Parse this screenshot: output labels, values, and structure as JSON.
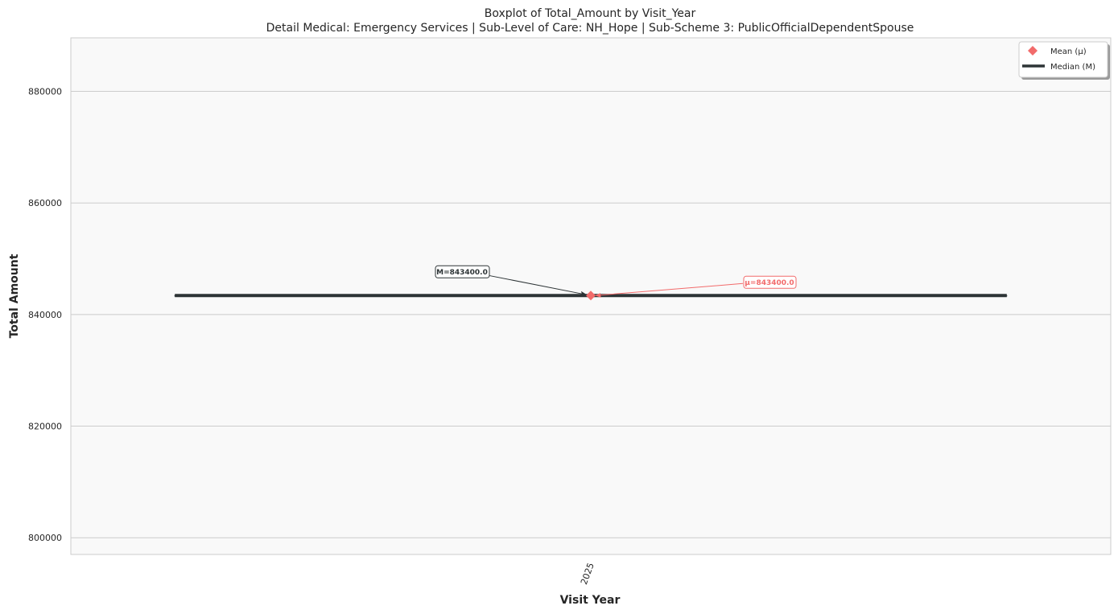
{
  "chart_data": {
    "type": "boxplot",
    "title": "Boxplot of Total_Amount by Visit_Year",
    "subtitle": "Detail Medical: Emergency Services | Sub-Level of Care: NH_Hope | Sub-Scheme 3: PublicOfficialDependentSpouse",
    "xlabel": "Visit Year",
    "ylabel": "Total Amount",
    "categories": [
      "2025"
    ],
    "ylim": [
      797000,
      889600
    ],
    "yticks": [
      800000,
      820000,
      840000,
      860000,
      880000
    ],
    "ytick_labels": [
      "800000",
      "820000",
      "840000",
      "860000",
      "880000"
    ],
    "grid": true,
    "legend_position": "top-right",
    "legend": [
      {
        "label": "Mean (μ)",
        "marker": "diamond",
        "color": "#f26b6b"
      },
      {
        "label": "Median (M)",
        "marker": "line",
        "color": "#2d3436"
      }
    ],
    "boxes": [
      {
        "category": "2025",
        "min": 843400,
        "q1": 843400,
        "median": 843400,
        "q3": 843400,
        "max": 843400,
        "mean": 843400
      }
    ],
    "annotations": {
      "median": "M=843400.0",
      "mean": "μ=843400.0"
    },
    "colors": {
      "median": "#2d3436",
      "mean": "#f26b6b",
      "plot_bg": "#f9f9f9",
      "grid": "#cccccc"
    }
  }
}
